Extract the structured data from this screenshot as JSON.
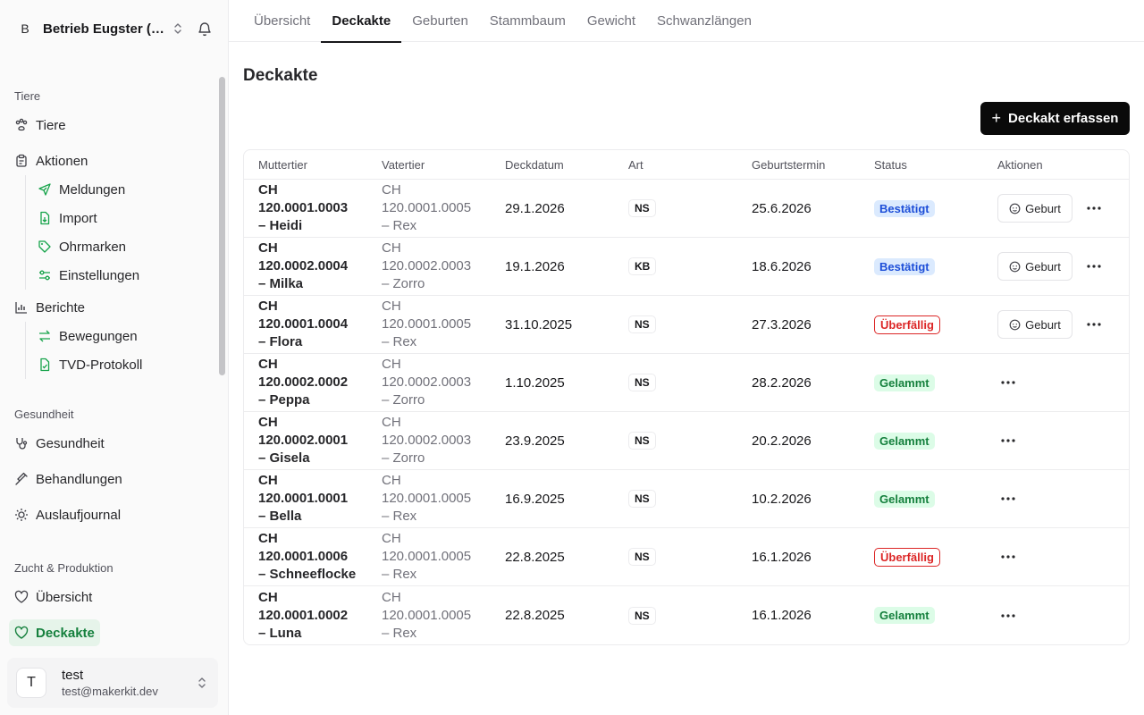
{
  "sidebar": {
    "org": {
      "initial": "B",
      "name": "Betrieb Eugster (H..."
    },
    "groups": [
      {
        "label": "Tiere"
      },
      {
        "label": "Gesundheit"
      },
      {
        "label": "Zucht & Produktion"
      }
    ],
    "items": {
      "tiere": "Tiere",
      "aktionen": "Aktionen",
      "meldungen": "Meldungen",
      "import": "Import",
      "ohrmarken": "Ohrmarken",
      "einstellungen": "Einstellungen",
      "berichte": "Berichte",
      "bewegungen": "Bewegungen",
      "tvd": "TVD-Protokoll",
      "gesundheit": "Gesundheit",
      "behandlungen": "Behandlungen",
      "auslaufjournal": "Auslaufjournal",
      "uebersicht": "Übersicht",
      "deckakte": "Deckakte"
    },
    "user": {
      "initial": "T",
      "name": "test",
      "email": "test@makerkit.dev"
    }
  },
  "tabs": [
    "Übersicht",
    "Deckakte",
    "Geburten",
    "Stammbaum",
    "Gewicht",
    "Schwanzlängen"
  ],
  "page": {
    "title": "Deckakte",
    "add_button": "Deckakt erfassen"
  },
  "table": {
    "headers": [
      "Muttertier",
      "Vatertier",
      "Deckdatum",
      "Art",
      "Geburtstermin",
      "Status",
      "Aktionen"
    ],
    "birth_label": "Geburt",
    "rows": [
      {
        "mother_id": "CH 120.0001.0003",
        "mother_name": "– Heidi",
        "father_id": "CH 120.0001.0005",
        "father_name": "– Rex",
        "date": "29.1.2026",
        "art": "NS",
        "due": "25.6.2026",
        "status": "Bestätigt",
        "status_type": "confirmed",
        "birth": true
      },
      {
        "mother_id": "CH 120.0002.0004",
        "mother_name": "– Milka",
        "father_id": "CH 120.0002.0003",
        "father_name": "– Zorro",
        "date": "19.1.2026",
        "art": "KB",
        "due": "18.6.2026",
        "status": "Bestätigt",
        "status_type": "confirmed",
        "birth": true
      },
      {
        "mother_id": "CH 120.0001.0004",
        "mother_name": "– Flora",
        "father_id": "CH 120.0001.0005",
        "father_name": "– Rex",
        "date": "31.10.2025",
        "art": "NS",
        "due": "27.3.2026",
        "status": "Überfällig",
        "status_type": "overdue",
        "birth": true
      },
      {
        "mother_id": "CH 120.0002.0002",
        "mother_name": "– Peppa",
        "father_id": "CH 120.0002.0003",
        "father_name": "– Zorro",
        "date": "1.10.2025",
        "art": "NS",
        "due": "28.2.2026",
        "status": "Gelammt",
        "status_type": "lambed",
        "birth": false
      },
      {
        "mother_id": "CH 120.0002.0001",
        "mother_name": "– Gisela",
        "father_id": "CH 120.0002.0003",
        "father_name": "– Zorro",
        "date": "23.9.2025",
        "art": "NS",
        "due": "20.2.2026",
        "status": "Gelammt",
        "status_type": "lambed",
        "birth": false
      },
      {
        "mother_id": "CH 120.0001.0001",
        "mother_name": "– Bella",
        "father_id": "CH 120.0001.0005",
        "father_name": "– Rex",
        "date": "16.9.2025",
        "art": "NS",
        "due": "10.2.2026",
        "status": "Gelammt",
        "status_type": "lambed",
        "birth": false
      },
      {
        "mother_id": "CH 120.0001.0006",
        "mother_name": "– Schneeflocke",
        "father_id": "CH 120.0001.0005",
        "father_name": "– Rex",
        "date": "22.8.2025",
        "art": "NS",
        "due": "16.1.2026",
        "status": "Überfällig",
        "status_type": "overdue",
        "birth": false
      },
      {
        "mother_id": "CH 120.0001.0002",
        "mother_name": "– Luna",
        "father_id": "CH 120.0001.0005",
        "father_name": "– Rex",
        "date": "22.8.2025",
        "art": "NS",
        "due": "16.1.2026",
        "status": "Gelammt",
        "status_type": "lambed",
        "birth": false
      }
    ]
  },
  "colors": {
    "accent": "#15803d",
    "primary": "#0a0a0a",
    "confirmed": "#1d4ed8",
    "overdue": "#dc2626"
  }
}
